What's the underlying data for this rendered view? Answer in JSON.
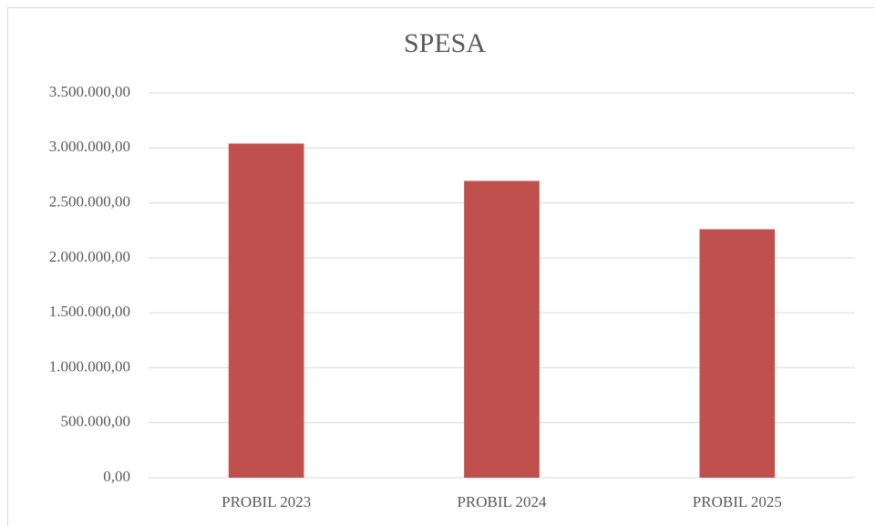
{
  "chart_data": {
    "type": "bar",
    "title": "SPESA",
    "categories": [
      "PROBIL 2023",
      "PROBIL 2024",
      "PROBIL 2025"
    ],
    "values": [
      3040000,
      2700000,
      2260000
    ],
    "color": "#c0504d",
    "ylim": [
      0,
      3500000
    ],
    "yticks": [
      {
        "value": 0,
        "label": "0,00"
      },
      {
        "value": 500000,
        "label": "500.000,00"
      },
      {
        "value": 1000000,
        "label": "1.000.000,00"
      },
      {
        "value": 1500000,
        "label": "1.500.000,00"
      },
      {
        "value": 2000000,
        "label": "2.000.000,00"
      },
      {
        "value": 2500000,
        "label": "2.500.000,00"
      },
      {
        "value": 3000000,
        "label": "3.000.000,00"
      },
      {
        "value": 3500000,
        "label": "3.500.000,00"
      }
    ],
    "grid": true
  }
}
